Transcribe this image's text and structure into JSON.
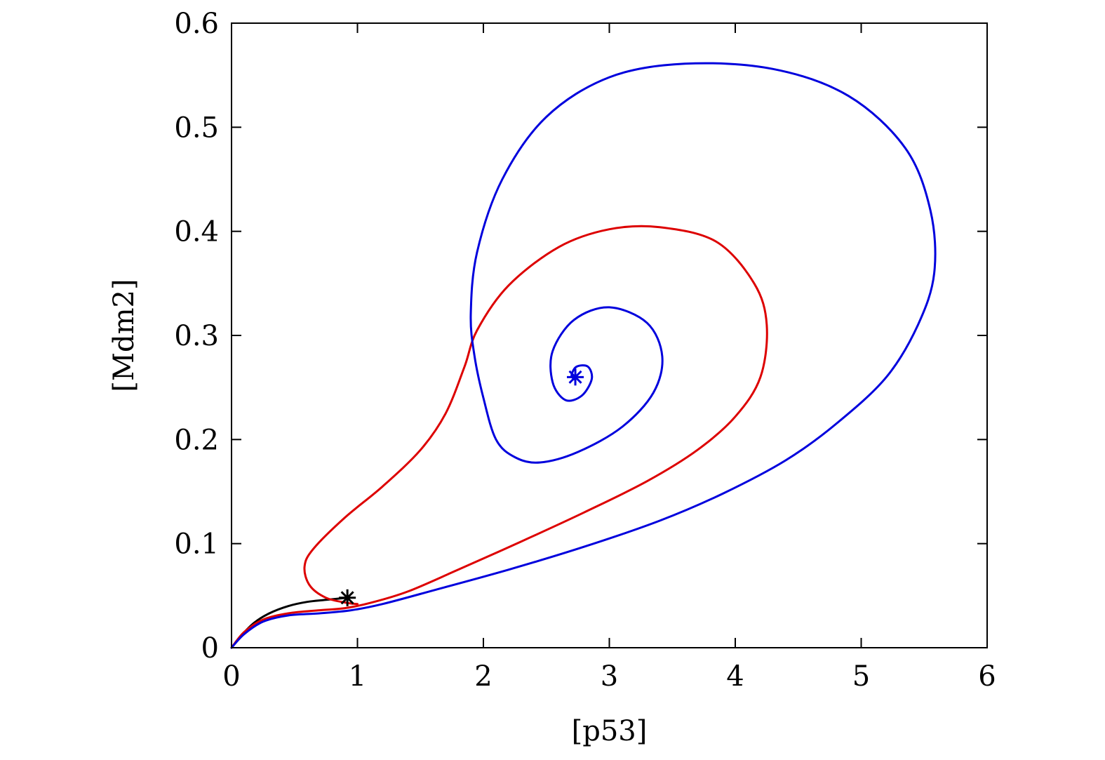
{
  "chart_data": {
    "type": "line",
    "xlabel": "[p53]",
    "ylabel": "[Mdm2]",
    "xlim": [
      0,
      6
    ],
    "ylim": [
      0,
      0.6
    ],
    "xticks": [
      "0",
      "1",
      "2",
      "3",
      "4",
      "5",
      "6"
    ],
    "yticks": [
      "0",
      "0.1",
      "0.2",
      "0.3",
      "0.4",
      "0.5",
      "0.6"
    ],
    "grid": false,
    "series": [
      {
        "color": "#000000",
        "points": [
          [
            0,
            0
          ],
          [
            0.08,
            0.012
          ],
          [
            0.18,
            0.024
          ],
          [
            0.3,
            0.033
          ],
          [
            0.45,
            0.04
          ],
          [
            0.6,
            0.044
          ],
          [
            0.75,
            0.046
          ],
          [
            0.92,
            0.048
          ]
        ]
      },
      {
        "color": "#dd0000",
        "points": [
          [
            0,
            0
          ],
          [
            0.1,
            0.015
          ],
          [
            0.25,
            0.027
          ],
          [
            0.45,
            0.033
          ],
          [
            0.7,
            0.036
          ],
          [
            0.9,
            0.038
          ],
          [
            1.1,
            0.043
          ],
          [
            1.4,
            0.054
          ],
          [
            1.8,
            0.075
          ],
          [
            2.3,
            0.102
          ],
          [
            2.8,
            0.13
          ],
          [
            3.3,
            0.16
          ],
          [
            3.7,
            0.19
          ],
          [
            4.0,
            0.222
          ],
          [
            4.2,
            0.26
          ],
          [
            4.25,
            0.31
          ],
          [
            4.15,
            0.35
          ],
          [
            3.85,
            0.39
          ],
          [
            3.4,
            0.404
          ],
          [
            3.0,
            0.402
          ],
          [
            2.6,
            0.385
          ],
          [
            2.2,
            0.348
          ],
          [
            1.95,
            0.305
          ],
          [
            1.85,
            0.27
          ],
          [
            1.7,
            0.225
          ],
          [
            1.5,
            0.19
          ],
          [
            1.2,
            0.155
          ],
          [
            0.9,
            0.125
          ],
          [
            0.65,
            0.095
          ],
          [
            0.58,
            0.078
          ],
          [
            0.62,
            0.06
          ],
          [
            0.75,
            0.048
          ],
          [
            0.92,
            0.043
          ],
          [
            1.0,
            0.042
          ]
        ]
      },
      {
        "color": "#0000dd",
        "points": [
          [
            0,
            0
          ],
          [
            0.1,
            0.013
          ],
          [
            0.25,
            0.025
          ],
          [
            0.45,
            0.031
          ],
          [
            0.7,
            0.033
          ],
          [
            0.95,
            0.036
          ],
          [
            1.2,
            0.042
          ],
          [
            1.6,
            0.055
          ],
          [
            2.2,
            0.075
          ],
          [
            2.8,
            0.097
          ],
          [
            3.4,
            0.122
          ],
          [
            3.9,
            0.148
          ],
          [
            4.4,
            0.18
          ],
          [
            4.8,
            0.215
          ],
          [
            5.2,
            0.26
          ],
          [
            5.45,
            0.31
          ],
          [
            5.58,
            0.36
          ],
          [
            5.55,
            0.42
          ],
          [
            5.35,
            0.48
          ],
          [
            4.9,
            0.53
          ],
          [
            4.3,
            0.556
          ],
          [
            3.6,
            0.561
          ],
          [
            3.0,
            0.548
          ],
          [
            2.5,
            0.51
          ],
          [
            2.15,
            0.45
          ],
          [
            1.95,
            0.38
          ],
          [
            1.9,
            0.32
          ],
          [
            1.93,
            0.28
          ],
          [
            2.0,
            0.24
          ],
          [
            2.1,
            0.2
          ],
          [
            2.25,
            0.183
          ],
          [
            2.45,
            0.178
          ],
          [
            2.75,
            0.188
          ],
          [
            3.1,
            0.212
          ],
          [
            3.35,
            0.245
          ],
          [
            3.42,
            0.28
          ],
          [
            3.3,
            0.312
          ],
          [
            3.0,
            0.327
          ],
          [
            2.72,
            0.315
          ],
          [
            2.55,
            0.285
          ],
          [
            2.55,
            0.255
          ],
          [
            2.65,
            0.238
          ],
          [
            2.78,
            0.242
          ],
          [
            2.86,
            0.258
          ],
          [
            2.83,
            0.27
          ],
          [
            2.74,
            0.27
          ],
          [
            2.7,
            0.262
          ],
          [
            2.72,
            0.258
          ]
        ]
      }
    ],
    "markers": [
      {
        "x": 0.92,
        "y": 0.048,
        "color": "#000000",
        "symbol": "asterisk"
      },
      {
        "x": 2.73,
        "y": 0.26,
        "color": "#0000dd",
        "symbol": "asterisk"
      }
    ]
  }
}
